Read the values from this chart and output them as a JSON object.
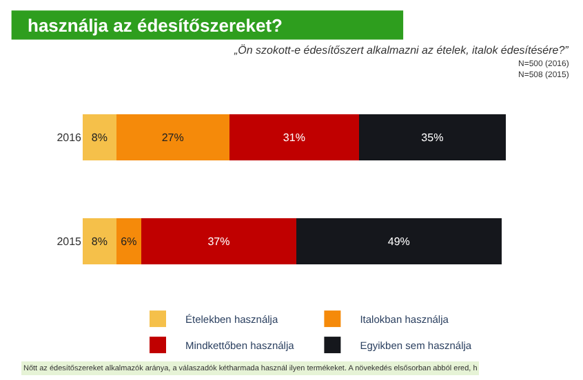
{
  "chart_data": {
    "type": "bar",
    "orientation": "horizontal",
    "stacked": true,
    "title": "használja az édesítőszereket?",
    "subtitle": "„Ön szokott-e édesítőszert alkalmazni az ételek, italok édesítésére?”",
    "annotations": [
      "N=500 (2016)",
      "N=508 (2015)",
      "Nőtt az édesítőszereket alkalmazók aránya, a válaszadók kétharmada használ ilyen termékeket. A növekedés elsősorban abból ered, h"
    ],
    "categories": [
      "2016",
      "2015"
    ],
    "series": [
      {
        "name": "Ételekben használja",
        "color": "#f5c04a",
        "values": [
          8,
          8
        ],
        "value_labels": [
          "8%",
          "8%"
        ]
      },
      {
        "name": "Italokban használja",
        "color": "#f58a0a",
        "values": [
          27,
          6
        ],
        "value_labels": [
          "27%",
          "6%"
        ]
      },
      {
        "name": "Mindkettőben használja",
        "color": "#c00000",
        "values": [
          31,
          37
        ],
        "value_labels": [
          "31%",
          "37%"
        ]
      },
      {
        "name": "Egyikben sem használja",
        "color": "#15171c",
        "values": [
          35,
          49
        ],
        "value_labels": [
          "35%",
          "49%"
        ]
      }
    ],
    "legend": "bottom"
  }
}
